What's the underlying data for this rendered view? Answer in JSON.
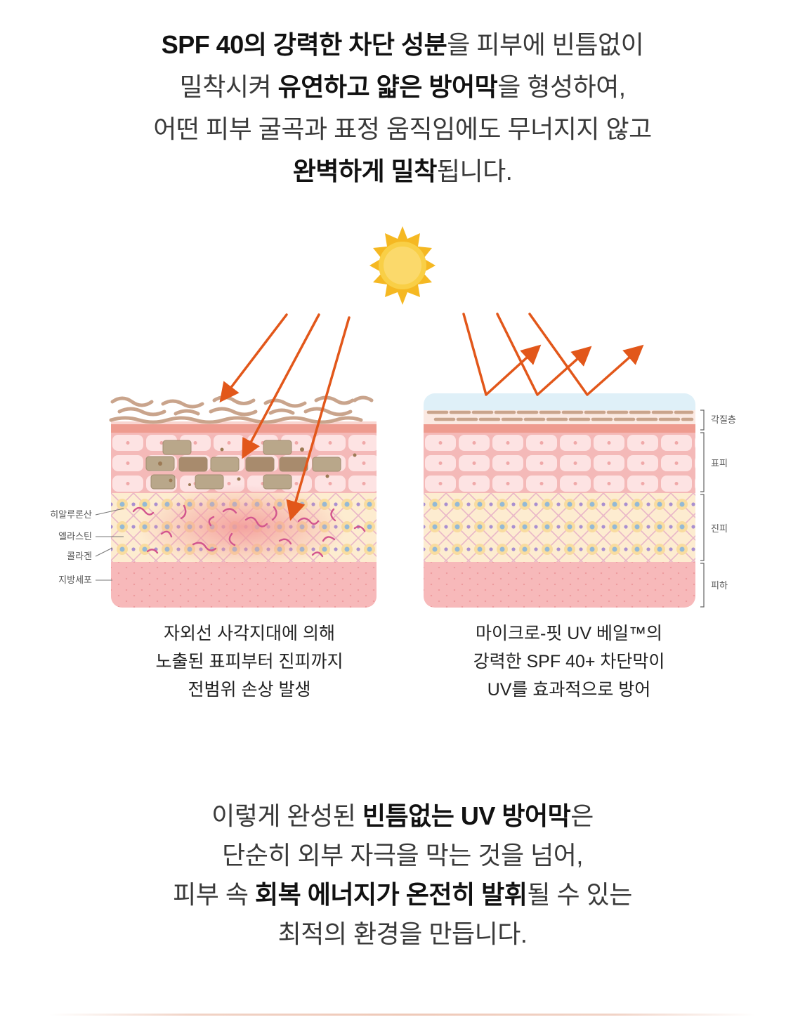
{
  "intro": {
    "l1": {
      "b1": "SPF 40의 강력한 차단 성분",
      "t1": "을 피부에 빈틈없이"
    },
    "l2": {
      "t1": "밀착시켜 ",
      "b1": "유연하고 얇은 방어막",
      "t2": "을 형성하여,"
    },
    "l3": {
      "t1": "어떤 피부 굴곡과 표정 움직임에도 무너지지 않고"
    },
    "l4": {
      "b1": "완벽하게 밀착",
      "t1": "됩니다."
    }
  },
  "left_panel": {
    "labels": [
      "히알루론산",
      "엘라스틴",
      "콜라겐",
      "지방세포"
    ],
    "caption": [
      "자외선 사각지대에 의해",
      "노출된 표피부터 진피까지",
      "전범위 손상 발생"
    ]
  },
  "right_panel": {
    "layers": [
      "각질층",
      "표피",
      "진피",
      "피하"
    ],
    "caption": [
      "마이크로-핏 UV 베일™의",
      "강력한 SPF 40+ 차단막이",
      "UV를 효과적으로 방어"
    ]
  },
  "outro": {
    "l1": {
      "t1": "이렇게 완성된 ",
      "b1": "빈틈없는 UV 방어막",
      "t2": "은"
    },
    "l2": {
      "t1": "단순히 외부 자극을 막는 것을 넘어,"
    },
    "l3": {
      "t1": "피부 속 ",
      "b1": "회복 에너지가 온전히 발휘",
      "t2": "될 수 있는"
    },
    "l4": {
      "t1": "최적의 환경을 만듭니다."
    }
  },
  "colors": {
    "sun": "#f5b822",
    "uv_arrow": "#e2571a",
    "barrier": "#dff0f8",
    "stratum": "#c9a48c",
    "epidermis": "#f7c7c3",
    "dermis": "#fbe7c8",
    "subcutis": "#f2a4a4"
  }
}
